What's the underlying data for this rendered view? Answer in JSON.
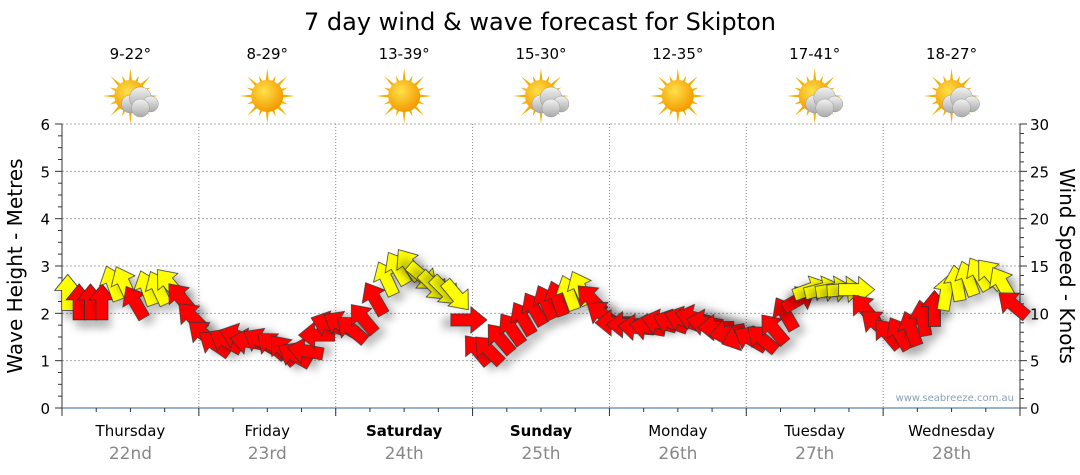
{
  "chart_data": {
    "type": "scatter",
    "title": "7 day wind & wave forecast for Skipton",
    "ylabel_left": "Wave Height - Metres",
    "ylabel_right": "Wind Speed - Knots",
    "ylim_left": [
      0,
      6
    ],
    "ylim_right": [
      0,
      30
    ],
    "yticks_left": [
      "0",
      "1",
      "2",
      "3",
      "4",
      "5",
      "6"
    ],
    "yticks_right": [
      "0",
      "5",
      "10",
      "15",
      "20",
      "25",
      "30"
    ],
    "grid": true,
    "watermark": "www.seabreeze.com.au",
    "days": [
      {
        "name": "Thursday",
        "date": "22nd",
        "bold": false,
        "temp": "9-22°",
        "icon": "sun-cloud"
      },
      {
        "name": "Friday",
        "date": "23rd",
        "bold": false,
        "temp": "8-29°",
        "icon": "sun"
      },
      {
        "name": "Saturday",
        "date": "24th",
        "bold": true,
        "temp": "13-39°",
        "icon": "sun"
      },
      {
        "name": "Sunday",
        "date": "25th",
        "bold": true,
        "temp": "15-30°",
        "icon": "sun-cloud"
      },
      {
        "name": "Monday",
        "date": "26th",
        "bold": false,
        "temp": "12-35°",
        "icon": "sun"
      },
      {
        "name": "Tuesday",
        "date": "27th",
        "bold": false,
        "temp": "17-41°",
        "icon": "sun-cloud"
      },
      {
        "name": "Wednesday",
        "date": "28th",
        "bold": false,
        "temp": "18-27°",
        "icon": "sun-cloud"
      }
    ],
    "wind_colors": {
      "strong": "#ffff00",
      "light": "#ff0000"
    },
    "wind_threshold_knots": 12,
    "wind_speed_knots": [
      12,
      11,
      11,
      11,
      13,
      13,
      11,
      12.5,
      12.5,
      13,
      11.5,
      9.5,
      7.7,
      6.7,
      7,
      7.5,
      7,
      7,
      6.5,
      6,
      5.5,
      6,
      7.7,
      8.8,
      8.8,
      8.2,
      9.3,
      11.4,
      13.5,
      14.6,
      15,
      14,
      13,
      12.5,
      12,
      9.3,
      6,
      6,
      7.2,
      8.2,
      9.3,
      10.3,
      11,
      11.4,
      12,
      12.5,
      11.4,
      9.8,
      9,
      8.8,
      8.5,
      8.5,
      9,
      9,
      9.3,
      9.5,
      9,
      8.5,
      8,
      7.5,
      7.2,
      7.2,
      8.2,
      9.8,
      11.4,
      12.5,
      12.5,
      12.5,
      12.5,
      12.5,
      10.3,
      8.8,
      7.7,
      7.7,
      8.2,
      9.3,
      10.3,
      12,
      13,
      13.5,
      14,
      14,
      13,
      10.8
    ],
    "wind_heading_deg": [
      0,
      0,
      0,
      0,
      -20,
      -25,
      -30,
      -20,
      -25,
      -40,
      -40,
      -45,
      -50,
      -55,
      -60,
      -70,
      -80,
      -60,
      -50,
      -40,
      -60,
      -80,
      -90,
      -70,
      -60,
      -50,
      -40,
      -30,
      -25,
      -30,
      -35,
      130,
      135,
      135,
      140,
      90,
      -40,
      -45,
      -40,
      -35,
      -30,
      -30,
      -25,
      -20,
      -20,
      -25,
      -45,
      -55,
      -90,
      -90,
      -85,
      -80,
      -75,
      -70,
      -70,
      -75,
      -80,
      -90,
      -100,
      -110,
      -60,
      -50,
      -40,
      -30,
      60,
      70,
      75,
      80,
      85,
      90,
      -40,
      -50,
      -40,
      -30,
      -20,
      -10,
      0,
      10,
      -10,
      -20,
      -30,
      -40,
      -30,
      -50
    ]
  }
}
